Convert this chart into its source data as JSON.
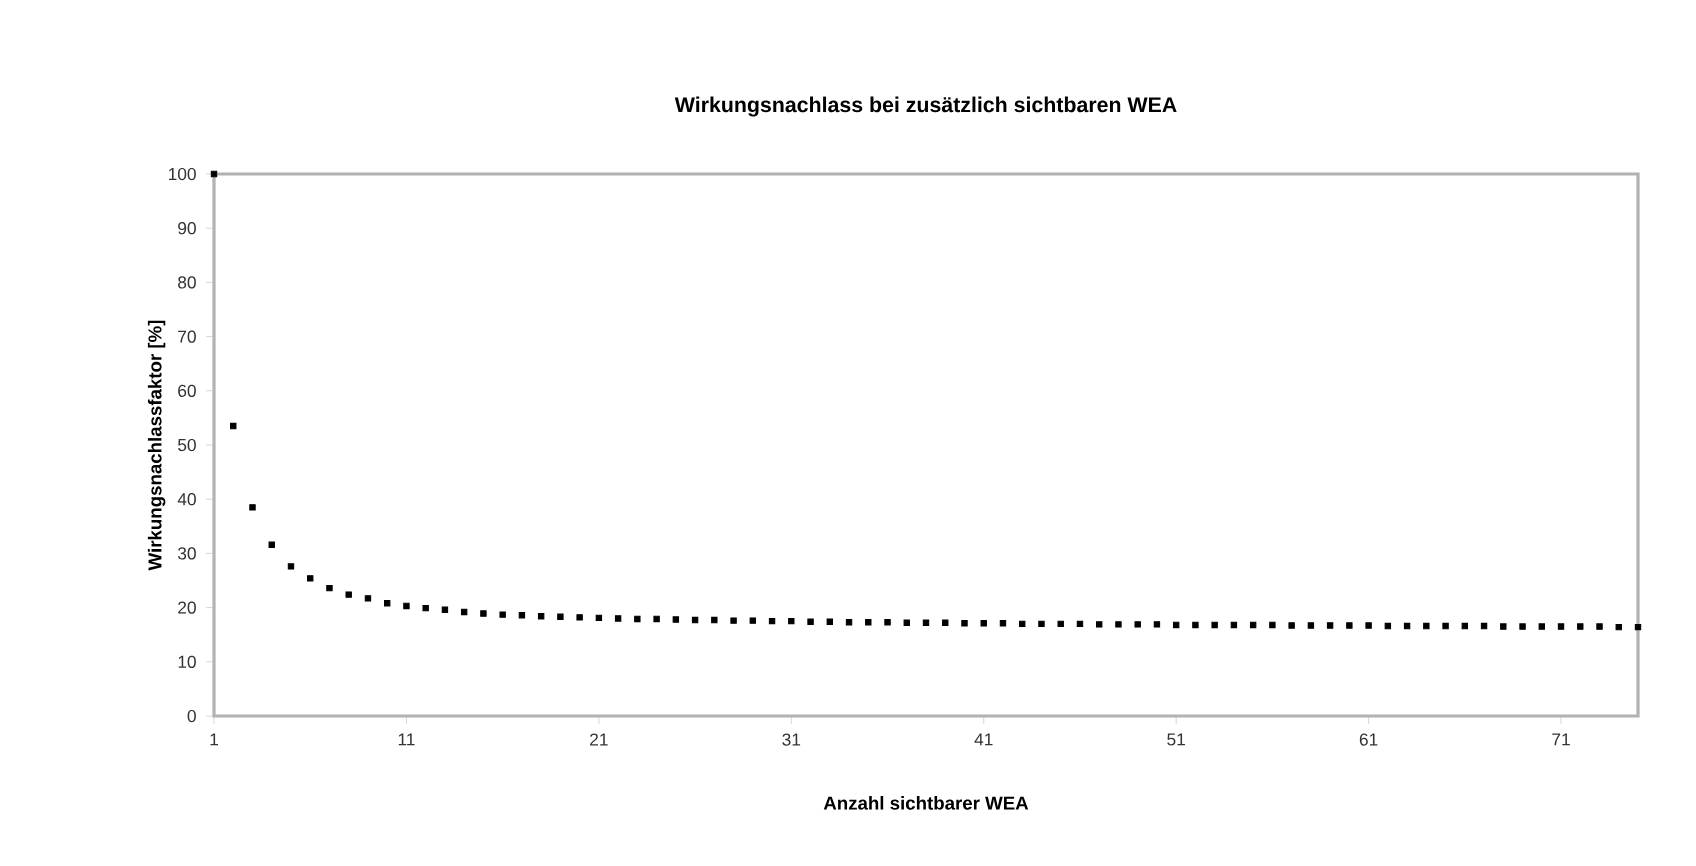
{
  "chart_data": {
    "type": "scatter",
    "title": "Wirkungsnachlass bei zusätzlich sichtbaren WEA",
    "xlabel": "Anzahl sichtbarer WEA",
    "ylabel": "Wirkungsnachlassfaktor   [%]",
    "x": [
      1,
      2,
      3,
      4,
      5,
      6,
      7,
      8,
      9,
      10,
      11,
      12,
      13,
      14,
      15,
      16,
      17,
      18,
      19,
      20,
      21,
      22,
      23,
      24,
      25,
      26,
      27,
      28,
      29,
      30,
      31,
      32,
      33,
      34,
      35,
      36,
      37,
      38,
      39,
      40,
      41,
      42,
      43,
      44,
      45,
      46,
      47,
      48,
      49,
      50,
      51,
      52,
      53,
      54,
      55,
      56,
      57,
      58,
      59,
      60,
      61,
      62,
      63,
      64,
      65,
      66,
      67,
      68,
      69,
      70,
      71,
      72,
      73,
      74,
      75
    ],
    "series": [
      {
        "color": "#000000",
        "values": [
          100,
          53.5,
          38.5,
          31.6,
          27.6,
          25.4,
          23.6,
          22.4,
          21.7,
          20.8,
          20.3,
          19.9,
          19.6,
          19.2,
          18.9,
          18.7,
          18.6,
          18.4,
          18.3,
          18.2,
          18.1,
          18.0,
          17.9,
          17.9,
          17.8,
          17.7,
          17.7,
          17.6,
          17.6,
          17.5,
          17.5,
          17.4,
          17.4,
          17.3,
          17.3,
          17.3,
          17.2,
          17.2,
          17.2,
          17.1,
          17.1,
          17.1,
          17.0,
          17.0,
          17.0,
          17.0,
          16.9,
          16.9,
          16.9,
          16.9,
          16.8,
          16.8,
          16.8,
          16.8,
          16.8,
          16.8,
          16.7,
          16.7,
          16.7,
          16.7,
          16.7,
          16.6,
          16.6,
          16.6,
          16.6,
          16.6,
          16.6,
          16.5,
          16.5,
          16.5,
          16.5,
          16.5,
          16.5,
          16.4,
          16.4
        ]
      }
    ],
    "xlim": [
      1,
      75
    ],
    "ylim": [
      0,
      100
    ],
    "xticks": [
      1,
      11,
      21,
      31,
      41,
      51,
      61,
      71
    ],
    "yticks": [
      0,
      10,
      20,
      30,
      40,
      50,
      60,
      70,
      80,
      90,
      100
    ],
    "grid": false,
    "marker": "square"
  }
}
